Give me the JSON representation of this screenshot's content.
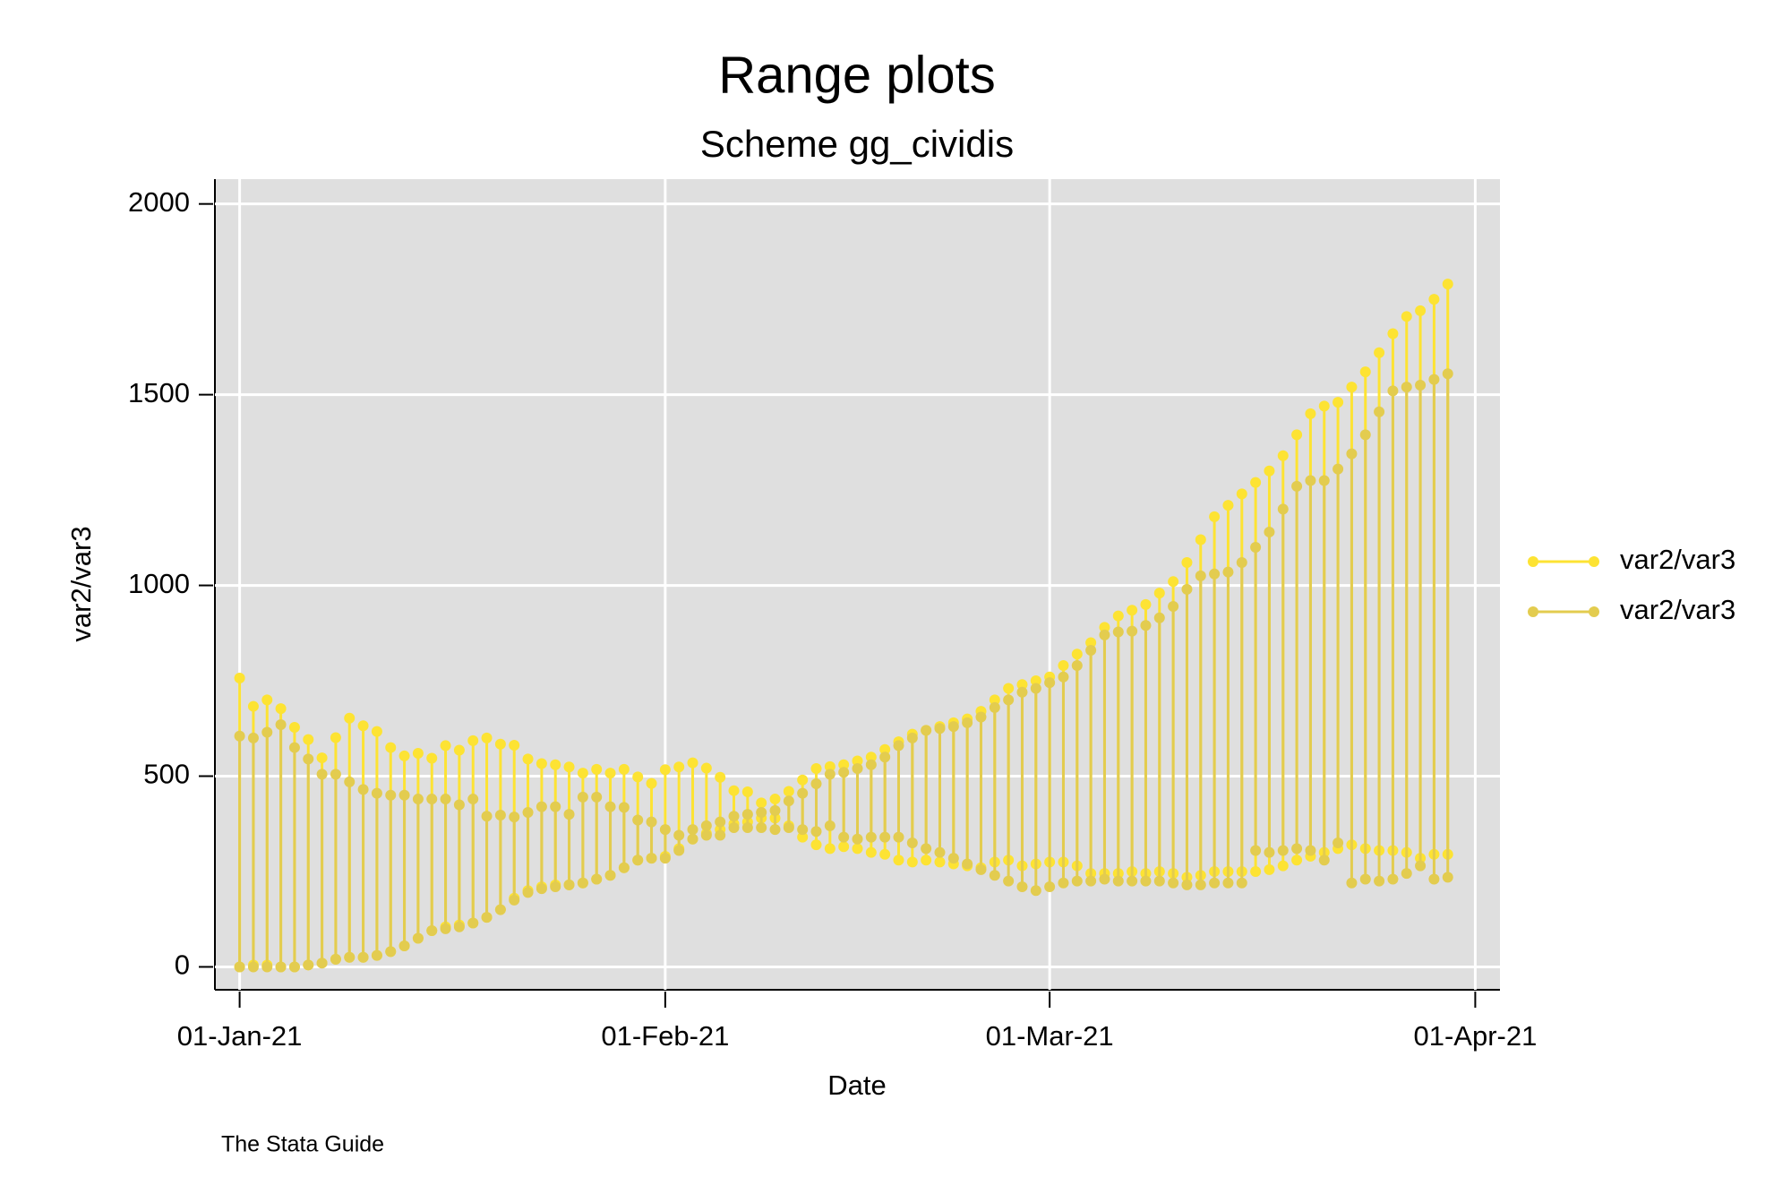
{
  "chart_data": {
    "type": "rcap",
    "title": "Range plots",
    "subtitle": "Scheme gg_cividis",
    "x_label": "Date",
    "y_label": "var2/var3",
    "note": "The Stata Guide",
    "xlim": [
      -1.8,
      91.8
    ],
    "ylim": [
      -60,
      2065
    ],
    "xticks": [
      {
        "value": 0,
        "label": "01-Jan-21"
      },
      {
        "value": 31,
        "label": "01-Feb-21"
      },
      {
        "value": 59,
        "label": "01-Mar-21"
      },
      {
        "value": 90,
        "label": "01-Apr-21"
      }
    ],
    "yticks": [
      0,
      500,
      1000,
      1500,
      2000
    ],
    "grid": true,
    "legend": "right",
    "x": [
      0,
      1,
      2,
      3,
      4,
      5,
      6,
      7,
      8,
      9,
      10,
      11,
      12,
      13,
      14,
      15,
      16,
      17,
      18,
      19,
      20,
      21,
      22,
      23,
      24,
      25,
      26,
      27,
      28,
      29,
      30,
      31,
      32,
      33,
      34,
      35,
      36,
      37,
      38,
      39,
      40,
      41,
      42,
      43,
      44,
      45,
      46,
      47,
      48,
      49,
      50,
      51,
      52,
      53,
      54,
      55,
      56,
      57,
      58,
      59,
      60,
      61,
      62,
      63,
      64,
      65,
      66,
      67,
      68,
      69,
      70,
      71,
      72,
      73,
      74,
      75,
      76,
      77,
      78,
      79,
      80,
      81,
      82,
      83,
      84,
      85,
      86,
      87,
      88
    ],
    "series": [
      {
        "name": "var2/var3",
        "color": "#fde333",
        "high": [
          757,
          683,
          700,
          677,
          628,
          596,
          548,
          601,
          652,
          632,
          617,
          575,
          553,
          560,
          547,
          580,
          568,
          593,
          600,
          584,
          581,
          545,
          533,
          530,
          524,
          508,
          518,
          508,
          518,
          498,
          481,
          517,
          524,
          535,
          521,
          497,
          462,
          459,
          430,
          440,
          460,
          490,
          520,
          525,
          530,
          540,
          550,
          570,
          590,
          610,
          620,
          630,
          640,
          650,
          670,
          700,
          730,
          740,
          750,
          760,
          790,
          820,
          850,
          890,
          920,
          935,
          950,
          980,
          1010,
          1060,
          1120,
          1180,
          1210,
          1240,
          1270,
          1300,
          1340,
          1395,
          1450,
          1470,
          1480,
          1520,
          1560,
          1610,
          1660,
          1705,
          1720,
          1750,
          1790
        ],
        "low": [
          0,
          5,
          5,
          0,
          0,
          5,
          10,
          20,
          25,
          25,
          30,
          40,
          55,
          75,
          95,
          105,
          110,
          115,
          130,
          150,
          180,
          200,
          210,
          215,
          215,
          220,
          230,
          240,
          260,
          280,
          285,
          290,
          310,
          335,
          350,
          360,
          375,
          380,
          390,
          390,
          370,
          340,
          320,
          310,
          315,
          310,
          300,
          295,
          280,
          275,
          280,
          275,
          270,
          265,
          260,
          275,
          280,
          265,
          270,
          275,
          275,
          265,
          245,
          245,
          245,
          250,
          245,
          250,
          245,
          235,
          240,
          250,
          250,
          250,
          250,
          255,
          265,
          280,
          290,
          300,
          310,
          320,
          310,
          305,
          305,
          300,
          285,
          295,
          295
        ]
      },
      {
        "name": "var2/var3",
        "color": "#e3cc4f",
        "high": [
          605,
          600,
          615,
          635,
          575,
          545,
          505,
          505,
          485,
          465,
          455,
          450,
          450,
          440,
          440,
          440,
          425,
          440,
          395,
          398,
          393,
          405,
          420,
          420,
          400,
          445,
          445,
          420,
          418,
          385,
          380,
          360,
          345,
          360,
          370,
          380,
          395,
          400,
          405,
          410,
          435,
          455,
          480,
          505,
          510,
          520,
          530,
          550,
          580,
          600,
          620,
          625,
          630,
          640,
          655,
          680,
          700,
          720,
          730,
          745,
          760,
          790,
          830,
          870,
          878,
          880,
          895,
          915,
          945,
          990,
          1025,
          1030,
          1035,
          1060,
          1100,
          1140,
          1200,
          1260,
          1275,
          1275,
          1305,
          1345,
          1395,
          1455,
          1510,
          1520,
          1525,
          1540,
          1555
        ],
        "low": [
          0,
          0,
          0,
          0,
          0,
          5,
          10,
          20,
          25,
          25,
          30,
          40,
          55,
          75,
          95,
          100,
          105,
          115,
          130,
          150,
          175,
          195,
          205,
          210,
          215,
          220,
          230,
          240,
          260,
          280,
          285,
          285,
          305,
          335,
          345,
          345,
          365,
          365,
          365,
          360,
          365,
          360,
          355,
          370,
          340,
          335,
          340,
          340,
          340,
          325,
          310,
          300,
          285,
          270,
          255,
          240,
          225,
          210,
          200,
          210,
          220,
          225,
          225,
          230,
          225,
          225,
          225,
          225,
          220,
          215,
          215,
          220,
          220,
          220,
          305,
          300,
          305,
          310,
          305,
          280,
          325,
          220,
          230,
          225,
          230,
          245,
          265,
          230,
          235
        ]
      }
    ]
  }
}
